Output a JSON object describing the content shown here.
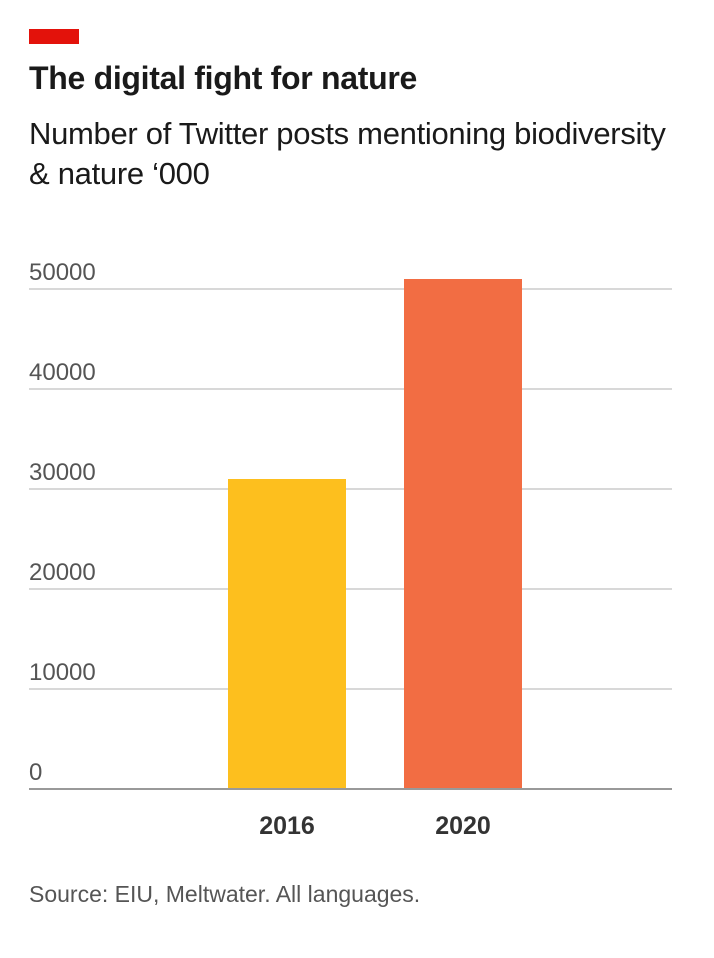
{
  "header": {
    "title": "The digital fight for nature",
    "subtitle": "Number of Twitter posts mentioning biodiversity & nature ‘000"
  },
  "footer": {
    "source": "Source: EIU, Meltwater. All languages."
  },
  "colors": {
    "brand": "#e3120b",
    "bar_2016": "#fdbf1e",
    "bar_2020": "#f26d43",
    "grid": "#cccccc",
    "baseline": "#999999"
  },
  "chart_data": {
    "type": "bar",
    "categories": [
      "2016",
      "2020"
    ],
    "values": [
      31000,
      51000
    ],
    "bar_colors": [
      "#fdbf1e",
      "#f26d43"
    ],
    "title": "The digital fight for nature",
    "subtitle": "Number of Twitter posts mentioning biodiversity & nature ‘000",
    "xlabel": "",
    "ylabel": "",
    "ylim": [
      0,
      50000
    ],
    "yticks": [
      "0",
      "10000",
      "20000",
      "30000",
      "40000",
      "50000"
    ],
    "grid": true,
    "legend": "none"
  }
}
